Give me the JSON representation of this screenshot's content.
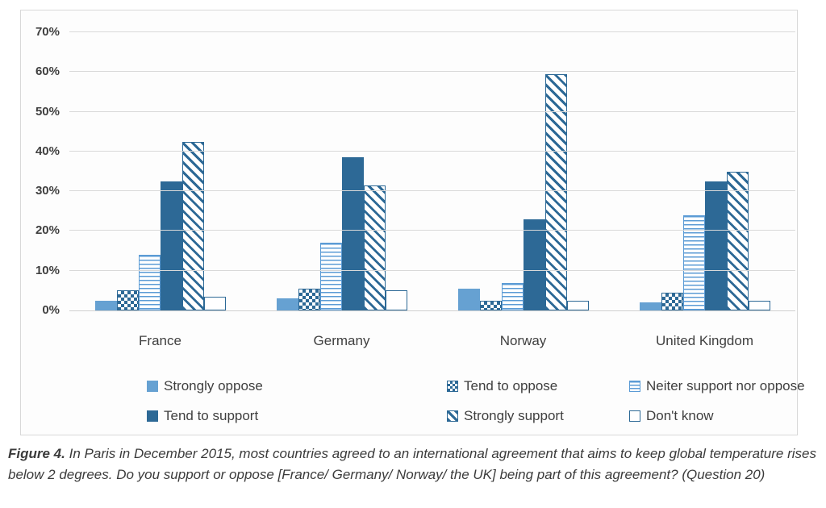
{
  "figure": {
    "caption_label": "Figure 4.",
    "caption_text": " In Paris in December 2015, most countries agreed to an international agreement that aims to keep global temperature rises below 2 degrees. Do you support or oppose [France/ Germany/ Norway/ the UK] being part of this agreement? (Question 20)"
  },
  "colors": {
    "light_blue": "#66a1d2",
    "dark_blue": "#2d6996",
    "mid_blue": "#5b9bd5",
    "gridline": "#d9d9d9",
    "text": "#3f3f3f",
    "panel_border": "#d8d8d8"
  },
  "chart_data": {
    "type": "bar",
    "title": "",
    "xlabel": "",
    "ylabel": "",
    "ylim": [
      0,
      70
    ],
    "ytick_step": 10,
    "yticks": [
      "0%",
      "10%",
      "20%",
      "30%",
      "40%",
      "50%",
      "60%",
      "70%"
    ],
    "grid": true,
    "legend_position": "bottom",
    "categories": [
      "France",
      "Germany",
      "Norway",
      "United Kingdom"
    ],
    "series": [
      {
        "name": "Strongly oppose",
        "pattern": "solid-light",
        "values": [
          2.5,
          3,
          5.5,
          2
        ]
      },
      {
        "name": "Tend to oppose",
        "pattern": "checker",
        "values": [
          5,
          5.5,
          2.5,
          4.5
        ]
      },
      {
        "name": "Neiter support nor oppose",
        "pattern": "hlines",
        "values": [
          14,
          17,
          7,
          24
        ]
      },
      {
        "name": "Tend to support",
        "pattern": "solid-dark",
        "values": [
          32.5,
          38.5,
          23,
          32.5
        ]
      },
      {
        "name": "Strongly support",
        "pattern": "diagonal",
        "values": [
          42.5,
          31.5,
          59.5,
          35
        ]
      },
      {
        "name": "Don't know",
        "pattern": "empty",
        "values": [
          3.5,
          5,
          2.5,
          2.5
        ]
      }
    ]
  }
}
